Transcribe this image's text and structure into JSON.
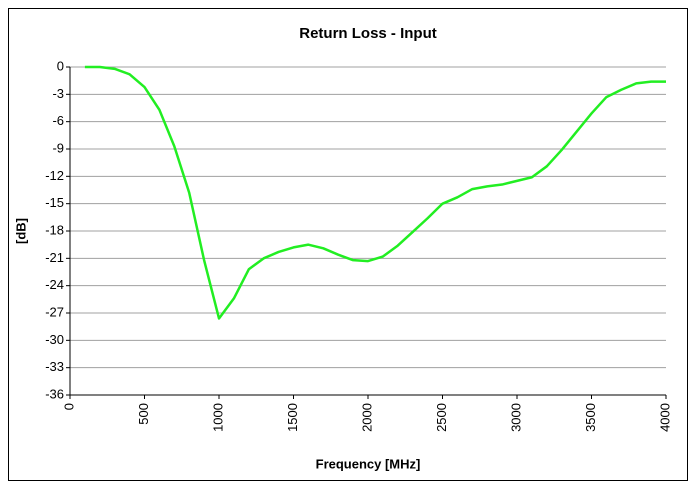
{
  "chart_data": {
    "type": "line",
    "title": "Return Loss - Input",
    "x_label": "Frequency [MHz]",
    "y_label": "[dB]",
    "x": [
      100,
      200,
      300,
      400,
      500,
      600,
      700,
      800,
      900,
      1000,
      1100,
      1200,
      1300,
      1400,
      1500,
      1600,
      1700,
      1800,
      1900,
      2000,
      2100,
      2200,
      2300,
      2400,
      2500,
      2600,
      2700,
      2800,
      2900,
      3000,
      3100,
      3200,
      3300,
      3400,
      3500,
      3600,
      3700,
      3800,
      3900,
      4000
    ],
    "series": [
      {
        "name": "Return Loss",
        "color": "#22ee22",
        "values": [
          0,
          0,
          -0.2,
          -0.8,
          -2.2,
          -4.7,
          -8.7,
          -13.8,
          -21.2,
          -27.6,
          -25.4,
          -22.2,
          -21,
          -20.3,
          -19.8,
          -19.5,
          -19.9,
          -20.6,
          -21.2,
          -21.3,
          -20.8,
          -19.6,
          -18.1,
          -16.6,
          -15,
          -14.3,
          -13.4,
          -13.1,
          -12.9,
          -12.5,
          -12.1,
          -10.9,
          -9.1,
          -7.1,
          -5.1,
          -3.3,
          -2.5,
          -1.8,
          -1.6,
          -1.6
        ]
      }
    ],
    "xlim": [
      0,
      4000
    ],
    "xticks": [
      0,
      500,
      1000,
      1500,
      2000,
      2500,
      3000,
      3500,
      4000
    ],
    "ylim": [
      -36,
      0
    ],
    "yticks": [
      0,
      -3,
      -6,
      -9,
      -12,
      -15,
      -18,
      -21,
      -24,
      -27,
      -30,
      -33,
      -36
    ],
    "grid": true
  }
}
